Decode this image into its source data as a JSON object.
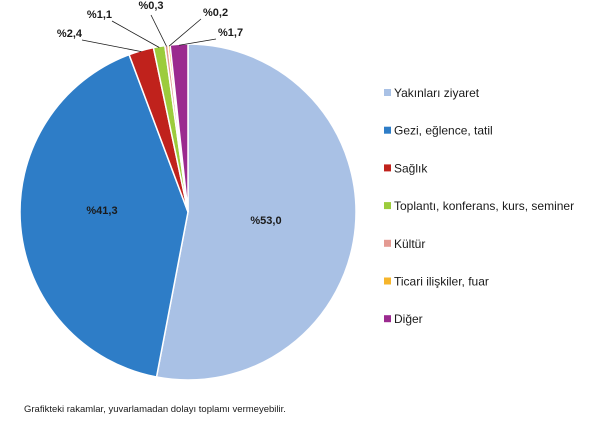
{
  "chart_data": {
    "type": "pie",
    "categories": [
      "Yakınları ziyaret",
      "Gezi, eğlence, tatil",
      "Sağlık",
      "Toplantı, konferans, kurs, seminer",
      "Kültür",
      "Ticari ilişkiler, fuar",
      "Diğer"
    ],
    "values": [
      53.0,
      41.3,
      2.4,
      1.1,
      0.3,
      0.2,
      1.7
    ],
    "data_labels": [
      "%53,0",
      "%41,3",
      "%2,4",
      "%1,1",
      "%0,3",
      "%0,2",
      "%1,7"
    ],
    "colors": [
      "#a9c1e5",
      "#2e7dc7",
      "#c0221c",
      "#9ccc3c",
      "#e49a92",
      "#f6b52b",
      "#9b2a8f"
    ],
    "start_angle_deg": 0,
    "direction": "clockwise",
    "legend_position": "right"
  },
  "footnote": "Grafikteki rakamlar, yuvarlamadan dolayı toplamı vermeyebilir."
}
